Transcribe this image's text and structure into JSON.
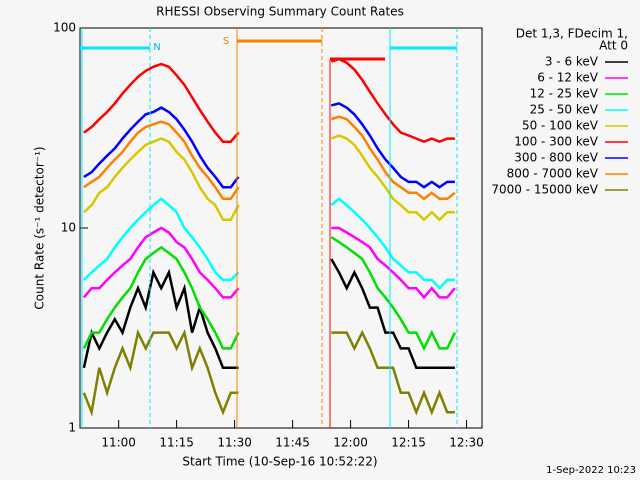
{
  "chart_data": {
    "type": "line",
    "title": "RHESSI Observing Summary Count Rates",
    "x_label": "Start Time (10-Sep-16 10:52:22)",
    "y_label": "Count Rate (s⁻¹ detector⁻¹)",
    "legend_title": [
      "Det 1,3, FDecim 1,",
      "Att 0"
    ],
    "footer": "1-Sep-2022 10:23",
    "annotations": [
      "N",
      "S"
    ],
    "log_y": true,
    "ylim": [
      1,
      100
    ],
    "yticks": [
      1,
      10,
      100
    ],
    "xlim": [
      650,
      754
    ],
    "xticks": [
      {
        "value": 660,
        "label": "11:00"
      },
      {
        "value": 675,
        "label": "11:15"
      },
      {
        "value": 690,
        "label": "11:30"
      },
      {
        "value": 705,
        "label": "11:45"
      },
      {
        "value": 720,
        "label": "12:00"
      },
      {
        "value": 735,
        "label": "12:15"
      },
      {
        "value": 750,
        "label": "12:30"
      }
    ],
    "x": [
      651,
      653,
      655,
      657,
      659,
      661,
      663,
      665,
      667,
      669,
      671,
      673,
      675,
      677,
      679,
      681,
      683,
      685,
      687,
      689,
      691,
      703,
      715,
      717,
      719,
      721,
      723,
      725,
      727,
      729,
      731,
      733,
      735,
      737,
      739,
      741,
      743,
      745,
      747
    ],
    "series": [
      {
        "name": "3 - 6 keV",
        "color": "#000000",
        "values": [
          2,
          3,
          2.5,
          3,
          3.5,
          3,
          4,
          5,
          4,
          6,
          5,
          6,
          4,
          5,
          3,
          4,
          3,
          2.5,
          2,
          2,
          2,
          null,
          7,
          6,
          5,
          6,
          5,
          4,
          4,
          3,
          3,
          2.5,
          2.5,
          2,
          2,
          2,
          2,
          2,
          2
        ]
      },
      {
        "name": "6 - 12 keV",
        "color": "#ff00ff",
        "values": [
          4.5,
          5,
          5,
          5.5,
          6,
          6.5,
          7,
          8,
          9,
          9.5,
          10,
          9.5,
          8.5,
          8,
          7,
          6,
          5.5,
          5,
          4.5,
          4.5,
          5,
          null,
          10,
          10,
          9.5,
          9,
          8.5,
          8,
          7,
          6.5,
          6,
          5.5,
          5,
          5,
          4.5,
          5,
          4.5,
          4.5,
          5
        ]
      },
      {
        "name": "12 - 25 keV",
        "color": "#00e000",
        "values": [
          2.5,
          3,
          3,
          3.5,
          4,
          4.5,
          5,
          6,
          7,
          7.5,
          8,
          7.5,
          7,
          6,
          5,
          4,
          3.5,
          3,
          2.5,
          2.5,
          3,
          null,
          9,
          8.5,
          8,
          7.5,
          7,
          6,
          5,
          4.5,
          4,
          3.5,
          3,
          3,
          2.5,
          3,
          2.5,
          2.5,
          3
        ]
      },
      {
        "name": "25 - 50 keV",
        "color": "#00ffff",
        "values": [
          5.5,
          6,
          6.5,
          7,
          8,
          9,
          10,
          11,
          12,
          13,
          14,
          13,
          12,
          10,
          9,
          8,
          7,
          6,
          5.5,
          5.5,
          6,
          null,
          13,
          14,
          13,
          12,
          11,
          10,
          9,
          8,
          7,
          6.5,
          6,
          6,
          5.5,
          5.5,
          5,
          5.5,
          5.5
        ]
      },
      {
        "name": "50 - 100 keV",
        "color": "#d8c800",
        "values": [
          12,
          13,
          15,
          16,
          18,
          20,
          22,
          24,
          26,
          27,
          28,
          27,
          24,
          22,
          19,
          16,
          14,
          13,
          11,
          11,
          13,
          null,
          28,
          29,
          28,
          26,
          23,
          20,
          18,
          16,
          14,
          13,
          12,
          12,
          11,
          12,
          11,
          12,
          12
        ]
      },
      {
        "name": "100 - 300 keV",
        "color": "#ff0000",
        "values": [
          30,
          32,
          35,
          38,
          42,
          47,
          52,
          57,
          61,
          64,
          66,
          64,
          58,
          52,
          45,
          39,
          34,
          30,
          27,
          27,
          30,
          null,
          68,
          70,
          67,
          62,
          55,
          48,
          42,
          37,
          33,
          30,
          29,
          28,
          27,
          28,
          27,
          28,
          28
        ]
      },
      {
        "name": "300 - 800 keV",
        "color": "#0000ff",
        "values": [
          18,
          19,
          21,
          23,
          25,
          28,
          31,
          34,
          37,
          38,
          40,
          38,
          35,
          31,
          27,
          23,
          20,
          18,
          16,
          16,
          18,
          null,
          41,
          42,
          40,
          37,
          33,
          29,
          25,
          22,
          20,
          18,
          17,
          17,
          16,
          17,
          16,
          17,
          17
        ]
      },
      {
        "name": "800 - 7000 keV",
        "color": "#ff8000",
        "values": [
          16,
          17,
          18,
          20,
          22,
          24,
          27,
          30,
          32,
          33,
          34,
          33,
          30,
          27,
          23,
          20,
          18,
          16,
          14,
          14,
          16,
          null,
          35,
          36,
          35,
          32,
          29,
          25,
          22,
          19,
          17,
          16,
          15,
          15,
          14,
          15,
          14,
          14,
          15
        ]
      },
      {
        "name": "7000 - 15000 keV",
        "color": "#808000",
        "values": [
          1.5,
          1.2,
          2,
          1.5,
          2,
          2.5,
          2,
          3,
          2.5,
          3,
          3,
          3,
          2.5,
          3,
          2,
          2.5,
          2,
          1.5,
          1.2,
          1.5,
          1.5,
          null,
          3,
          3,
          3,
          2.5,
          3,
          2.5,
          2,
          2,
          2,
          1.5,
          1.5,
          1.2,
          1.5,
          1.2,
          1.5,
          1.2,
          1.2
        ]
      }
    ]
  }
}
